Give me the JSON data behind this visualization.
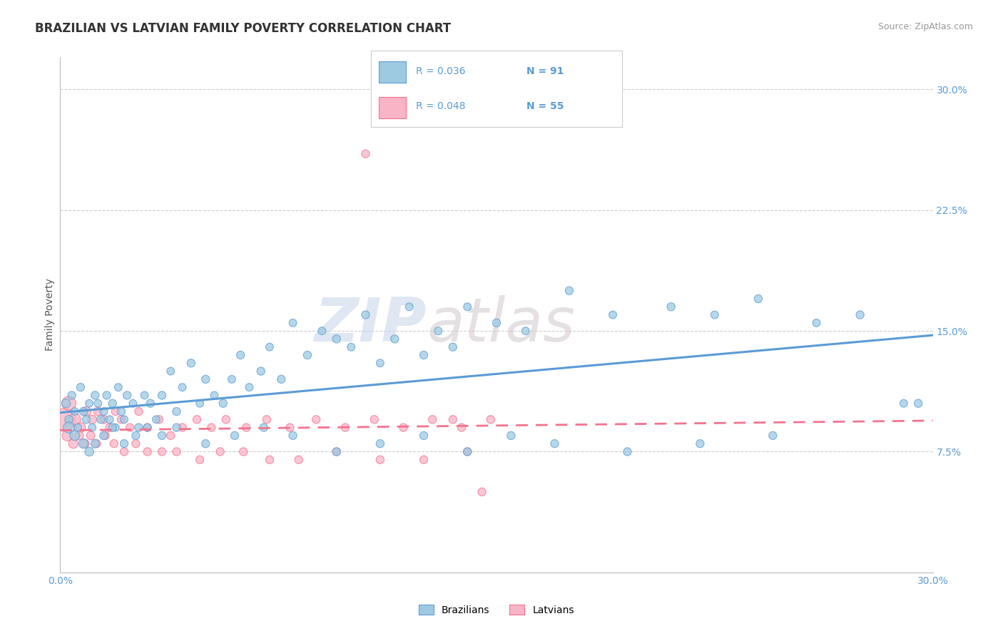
{
  "title": "BRAZILIAN VS LATVIAN FAMILY POVERTY CORRELATION CHART",
  "source_text": "Source: ZipAtlas.com",
  "ylabel": "Family Poverty",
  "xrange": [
    0.0,
    30.0
  ],
  "yrange": [
    0.0,
    32.0
  ],
  "brazil_color": "#5b9bd5",
  "brazil_color_fill": "#9ecae1",
  "latvia_color": "#f4728e",
  "latvia_color_fill": "#f9b4c5",
  "brazil_R": 0.036,
  "brazil_N": 91,
  "latvia_R": 0.048,
  "latvia_N": 55,
  "watermark_zip": "ZIP",
  "watermark_atlas": "atlas",
  "background_color": "#ffffff",
  "grid_color": "#c8c8c8",
  "ytick_labels": [
    "7.5%",
    "15.0%",
    "22.5%",
    "30.0%"
  ],
  "ytick_vals": [
    7.5,
    15.0,
    22.5,
    30.0
  ],
  "brazil_points_x": [
    0.2,
    0.3,
    0.4,
    0.5,
    0.6,
    0.7,
    0.8,
    0.9,
    1.0,
    1.1,
    1.2,
    1.3,
    1.4,
    1.5,
    1.6,
    1.7,
    1.8,
    1.9,
    2.0,
    2.1,
    2.2,
    2.3,
    2.5,
    2.7,
    2.9,
    3.1,
    3.3,
    3.5,
    3.8,
    4.0,
    4.2,
    4.5,
    4.8,
    5.0,
    5.3,
    5.6,
    5.9,
    6.2,
    6.5,
    6.9,
    7.2,
    7.6,
    8.0,
    8.5,
    9.0,
    9.5,
    10.0,
    10.5,
    11.0,
    11.5,
    12.0,
    12.5,
    13.0,
    13.5,
    14.0,
    15.0,
    16.0,
    17.5,
    19.0,
    21.0,
    22.5,
    24.0,
    26.0,
    27.5,
    29.0,
    0.3,
    0.5,
    0.8,
    1.0,
    1.2,
    1.5,
    1.8,
    2.2,
    2.6,
    3.0,
    3.5,
    4.0,
    5.0,
    6.0,
    7.0,
    8.0,
    9.5,
    11.0,
    12.5,
    14.0,
    15.5,
    17.0,
    19.5,
    22.0,
    24.5,
    29.5
  ],
  "brazil_points_y": [
    10.5,
    9.5,
    11.0,
    10.0,
    9.0,
    11.5,
    10.0,
    9.5,
    10.5,
    9.0,
    11.0,
    10.5,
    9.5,
    10.0,
    11.0,
    9.5,
    10.5,
    9.0,
    11.5,
    10.0,
    9.5,
    11.0,
    10.5,
    9.0,
    11.0,
    10.5,
    9.5,
    11.0,
    12.5,
    10.0,
    11.5,
    13.0,
    10.5,
    12.0,
    11.0,
    10.5,
    12.0,
    13.5,
    11.5,
    12.5,
    14.0,
    12.0,
    15.5,
    13.5,
    15.0,
    14.5,
    14.0,
    16.0,
    13.0,
    14.5,
    16.5,
    13.5,
    15.0,
    14.0,
    16.5,
    15.5,
    15.0,
    17.5,
    16.0,
    16.5,
    16.0,
    17.0,
    15.5,
    16.0,
    10.5,
    9.0,
    8.5,
    8.0,
    7.5,
    8.0,
    8.5,
    9.0,
    8.0,
    8.5,
    9.0,
    8.5,
    9.0,
    8.0,
    8.5,
    9.0,
    8.5,
    7.5,
    8.0,
    8.5,
    7.5,
    8.5,
    8.0,
    7.5,
    8.0,
    8.5,
    10.5
  ],
  "brazil_sizes": [
    80,
    70,
    65,
    60,
    60,
    65,
    70,
    65,
    60,
    60,
    65,
    60,
    65,
    60,
    65,
    60,
    65,
    60,
    60,
    65,
    60,
    65,
    60,
    65,
    60,
    65,
    60,
    65,
    60,
    65,
    60,
    65,
    60,
    65,
    60,
    65,
    60,
    65,
    60,
    65,
    60,
    65,
    60,
    65,
    60,
    65,
    60,
    65,
    60,
    65,
    60,
    65,
    60,
    65,
    60,
    65,
    60,
    65,
    60,
    65,
    60,
    65,
    60,
    65,
    60,
    130,
    100,
    90,
    80,
    75,
    70,
    65,
    65,
    65,
    65,
    65,
    65,
    65,
    65,
    65,
    65,
    65,
    65,
    65,
    65,
    65,
    65,
    65,
    65,
    65,
    65
  ],
  "latvia_points_x": [
    0.15,
    0.3,
    0.5,
    0.7,
    0.9,
    1.1,
    1.3,
    1.5,
    1.7,
    1.9,
    2.1,
    2.4,
    2.7,
    3.0,
    3.4,
    3.8,
    4.2,
    4.7,
    5.2,
    5.7,
    6.4,
    7.1,
    7.9,
    8.8,
    9.8,
    10.8,
    11.8,
    12.8,
    13.8,
    14.8,
    0.25,
    0.45,
    0.65,
    0.85,
    1.05,
    1.25,
    1.55,
    1.85,
    2.2,
    2.6,
    3.0,
    3.5,
    4.0,
    4.8,
    5.5,
    6.3,
    7.2,
    8.2,
    9.5,
    11.0,
    12.5,
    14.0,
    10.5,
    13.5,
    14.5
  ],
  "latvia_points_y": [
    9.5,
    10.5,
    9.5,
    9.0,
    10.0,
    9.5,
    10.0,
    9.5,
    9.0,
    10.0,
    9.5,
    9.0,
    10.0,
    9.0,
    9.5,
    8.5,
    9.0,
    9.5,
    9.0,
    9.5,
    9.0,
    9.5,
    9.0,
    9.5,
    9.0,
    9.5,
    9.0,
    9.5,
    9.0,
    9.5,
    8.5,
    8.0,
    8.5,
    8.0,
    8.5,
    8.0,
    8.5,
    8.0,
    7.5,
    8.0,
    7.5,
    7.5,
    7.5,
    7.0,
    7.5,
    7.5,
    7.0,
    7.0,
    7.5,
    7.0,
    7.0,
    7.5,
    26.0,
    9.5,
    5.0
  ],
  "latvia_sizes": [
    500,
    200,
    150,
    100,
    90,
    80,
    75,
    70,
    70,
    65,
    65,
    65,
    65,
    65,
    65,
    65,
    65,
    65,
    65,
    65,
    65,
    65,
    65,
    65,
    65,
    65,
    65,
    65,
    65,
    65,
    120,
    90,
    80,
    75,
    70,
    65,
    65,
    65,
    65,
    65,
    65,
    65,
    65,
    65,
    65,
    65,
    65,
    65,
    65,
    65,
    65,
    65,
    65,
    65,
    65
  ]
}
